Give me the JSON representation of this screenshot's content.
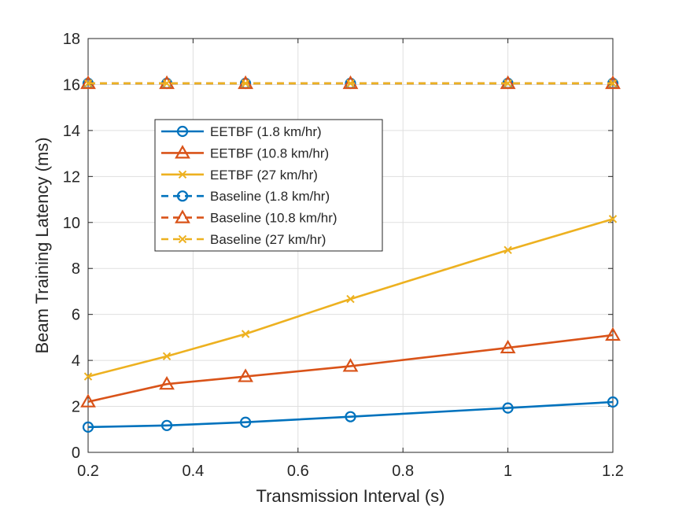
{
  "chart_data": {
    "type": "line",
    "title": "",
    "xlabel": "Transmission Interval (s)",
    "ylabel": "Beam Training Latency (ms)",
    "xlim": [
      0.2,
      1.2
    ],
    "ylim": [
      0,
      18
    ],
    "grid": true,
    "legend_position": "upper-left-inside",
    "x": [
      0.2,
      0.35,
      0.5,
      0.7,
      1.0,
      1.2
    ],
    "x_ticks": [
      0.2,
      0.4,
      0.6,
      0.8,
      1.0,
      1.2
    ],
    "x_tick_labels": [
      "0.2",
      "0.4",
      "0.6",
      "0.8",
      "1",
      "1.2"
    ],
    "y_ticks": [
      0,
      2,
      4,
      6,
      8,
      10,
      12,
      14,
      16,
      18
    ],
    "y_tick_labels": [
      "0",
      "2",
      "4",
      "6",
      "8",
      "10",
      "12",
      "14",
      "16",
      "18"
    ],
    "series": [
      {
        "name": "EETBF (1.8 km/hr)",
        "values": [
          1.1,
          1.17,
          1.31,
          1.55,
          1.93,
          2.19
        ],
        "color": "#0072BD",
        "marker": "circle",
        "dash": "solid"
      },
      {
        "name": "EETBF (10.8 km/hr)",
        "values": [
          2.2,
          2.97,
          3.3,
          3.75,
          4.55,
          5.1
        ],
        "color": "#D95319",
        "marker": "triangle",
        "dash": "solid"
      },
      {
        "name": "EETBF (27 km/hr)",
        "values": [
          3.3,
          4.18,
          5.15,
          6.67,
          8.8,
          10.15
        ],
        "color": "#EDB120",
        "marker": "x",
        "dash": "solid"
      },
      {
        "name": "Baseline (1.8 km/hr)",
        "values": [
          16.05,
          16.05,
          16.05,
          16.05,
          16.05,
          16.05
        ],
        "color": "#0072BD",
        "marker": "circle",
        "dash": "dashed"
      },
      {
        "name": "Baseline (10.8 km/hr)",
        "values": [
          16.05,
          16.05,
          16.05,
          16.05,
          16.05,
          16.05
        ],
        "color": "#D95319",
        "marker": "triangle",
        "dash": "dashed"
      },
      {
        "name": "Baseline (27 km/hr)",
        "values": [
          16.05,
          16.05,
          16.05,
          16.05,
          16.05,
          16.05
        ],
        "color": "#EDB120",
        "marker": "x",
        "dash": "dashed"
      }
    ]
  }
}
